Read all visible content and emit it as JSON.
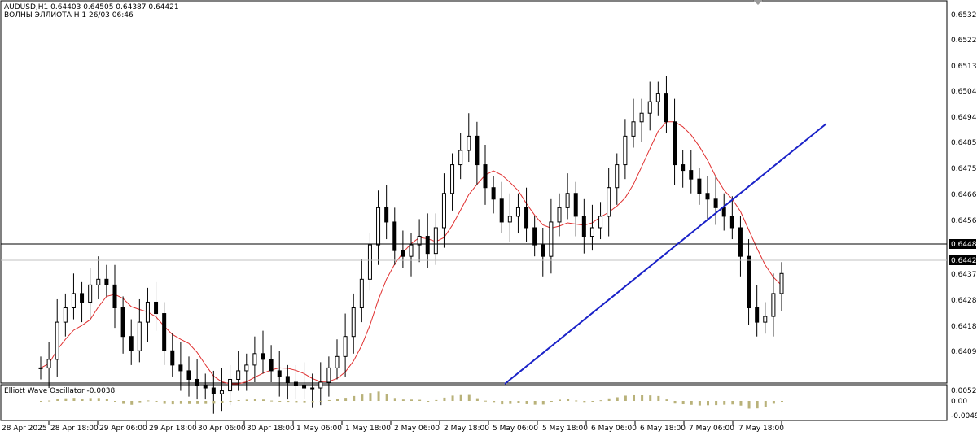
{
  "header": {
    "symbol_line": "AUDUSD,H1  0.64403 0.64505 0.64387 0.64421",
    "indicator_line": "ВОЛНЫ ЭЛЛИОТА H 1 26/03 06:46"
  },
  "oscillator": {
    "label": "Elliott Wave Oscillator -0.0038",
    "axis_ticks": [
      "0.0052",
      "0.00",
      "-0.0049"
    ]
  },
  "price_axis": {
    "ticks": [
      "0.65321",
      "0.65226",
      "0.65131",
      "0.65041",
      "0.64946",
      "0.64851",
      "0.64756",
      "0.64661",
      "0.64566",
      "0.64480",
      "0.64376",
      "0.64281",
      "0.64186",
      "0.64091"
    ],
    "highlight_level": "0.64480",
    "current_price": "0.64421"
  },
  "time_axis": {
    "labels": [
      "28 Apr 2025",
      "28 Apr 18:00",
      "29 Apr 06:00",
      "29 Apr 18:00",
      "30 Apr 06:00",
      "30 Apr 18:00",
      "1 May 06:00",
      "1 May 18:00",
      "2 May 06:00",
      "2 May 18:00",
      "5 May 06:00",
      "5 May 18:00",
      "6 May 06:00",
      "6 May 18:00",
      "7 May 06:00",
      "7 May 18:00"
    ]
  },
  "colors": {
    "moving_average": "#e03030",
    "trendline": "#1a22c8",
    "oscillator_bars": "#b9b27a",
    "candles": "#000000"
  },
  "chart_data": {
    "type": "candlestick",
    "series_prices": [
      0.6409,
      0.6412,
      0.6425,
      0.643,
      0.6435,
      0.6432,
      0.6438,
      0.644,
      0.6438,
      0.643,
      0.642,
      0.6415,
      0.6425,
      0.6432,
      0.6428,
      0.6415,
      0.641,
      0.6408,
      0.6405,
      0.6403,
      0.6402,
      0.64,
      0.6401,
      0.6405,
      0.6408,
      0.641,
      0.6414,
      0.6412,
      0.6408,
      0.6406,
      0.6404,
      0.6403,
      0.6402,
      0.6402,
      0.6404,
      0.6409,
      0.6413,
      0.642,
      0.643,
      0.644,
      0.6452,
      0.6465,
      0.646,
      0.645,
      0.6448,
      0.6452,
      0.6455,
      0.6449,
      0.6458,
      0.647,
      0.648,
      0.6485,
      0.649,
      0.648,
      0.6472,
      0.6468,
      0.646,
      0.6462,
      0.6465,
      0.6458,
      0.6452,
      0.6448,
      0.646,
      0.6465,
      0.647,
      0.6462,
      0.6455,
      0.6458,
      0.6462,
      0.6472,
      0.648,
      0.649,
      0.6495,
      0.6498,
      0.6502,
      0.6505,
      0.6495,
      0.648,
      0.6478,
      0.6475,
      0.647,
      0.6468,
      0.6465,
      0.6462,
      0.6458,
      0.6448,
      0.643,
      0.6425,
      0.6427,
      0.6435,
      0.6442
    ],
    "current_price": 0.64421,
    "ylim": [
      0.6404,
      0.6537
    ]
  }
}
